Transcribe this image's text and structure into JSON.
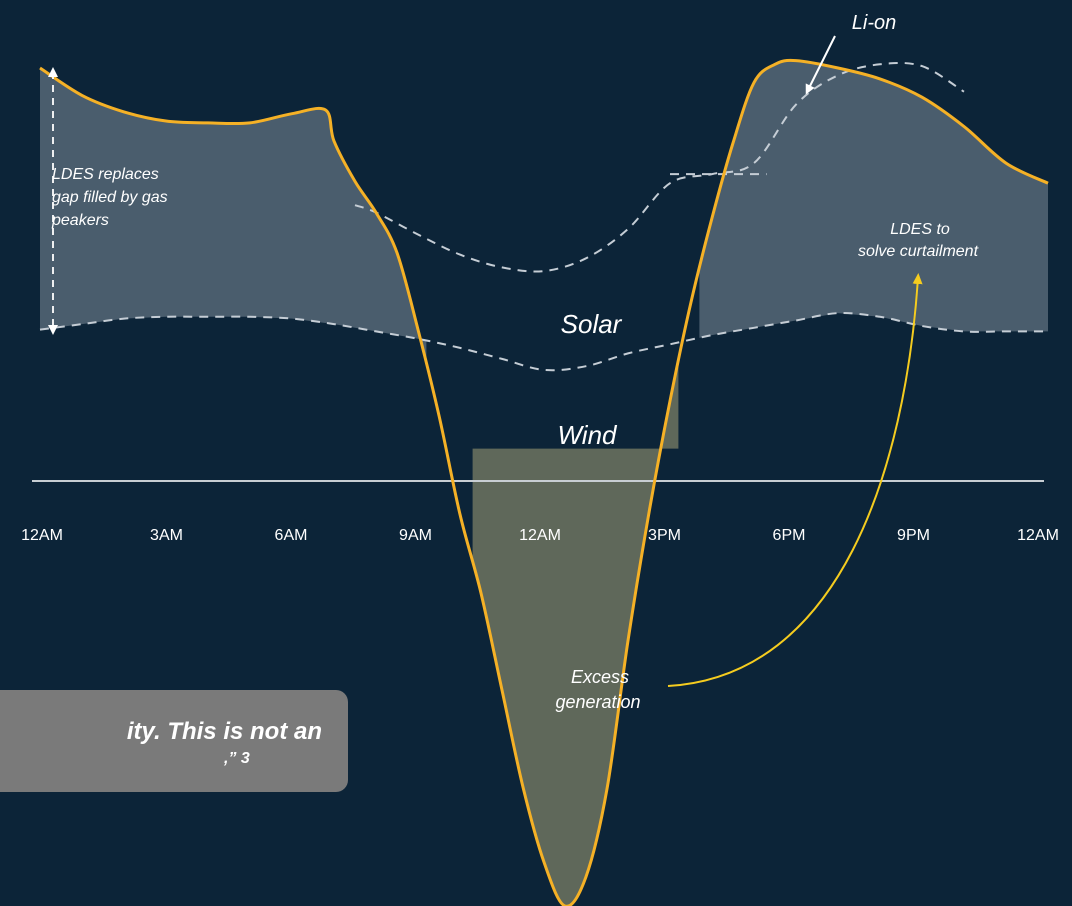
{
  "chart_data": {
    "type": "area",
    "x": [
      "12AM",
      "3AM",
      "6AM",
      "9AM",
      "12AM",
      "3PM",
      "6PM",
      "9PM",
      "12AM"
    ],
    "tick_labels": [
      "12AM",
      "3AM",
      "6AM",
      "9AM",
      "12AM",
      "3PM",
      "6PM",
      "9PM",
      "12AM"
    ],
    "xlim": [
      0,
      24
    ],
    "ylim": [
      -25,
      22
    ],
    "grid": false,
    "series": [
      {
        "name": "",
        "style": "solid",
        "color": "#f5b126",
        "points": [
          [
            0,
            20.8
          ],
          [
            1,
            19.3
          ],
          [
            2,
            18.4
          ],
          [
            3,
            17.9
          ],
          [
            4,
            17.8
          ],
          [
            5,
            17.8
          ],
          [
            6,
            18.3
          ],
          [
            6.8,
            18.5
          ],
          [
            7,
            16.8
          ],
          [
            7.5,
            14.6
          ],
          [
            8,
            12.9
          ],
          [
            8.5,
            10.7
          ],
          [
            9,
            6.5
          ],
          [
            9.5,
            1.8
          ],
          [
            10,
            -3.6
          ],
          [
            10.5,
            -7.9
          ],
          [
            11,
            -13.2
          ],
          [
            11.5,
            -18.5
          ],
          [
            12,
            -22.6
          ],
          [
            12.5,
            -25
          ],
          [
            13,
            -23.4
          ],
          [
            13.5,
            -18.6
          ],
          [
            14,
            -10.5
          ],
          [
            14.5,
            -3.5
          ],
          [
            15,
            2.6
          ],
          [
            15.5,
            8.0
          ],
          [
            16,
            12.6
          ],
          [
            16.5,
            16.7
          ],
          [
            17,
            20.0
          ],
          [
            17.5,
            21.0
          ],
          [
            18,
            21.2
          ],
          [
            19,
            20.8
          ],
          [
            20,
            20.2
          ],
          [
            21,
            19.2
          ],
          [
            22,
            17.6
          ],
          [
            23,
            15.6
          ],
          [
            24,
            14.5
          ]
        ]
      },
      {
        "name": "",
        "style": "dashed",
        "color": "#c5cdd5",
        "points": [
          [
            7.5,
            13.3
          ],
          [
            8,
            12.9
          ],
          [
            9,
            11.7
          ],
          [
            10,
            10.6
          ],
          [
            11,
            9.9
          ],
          [
            12,
            9.7
          ],
          [
            13,
            10.4
          ],
          [
            14,
            12.0
          ],
          [
            15,
            14.5
          ],
          [
            16,
            15.0
          ],
          [
            17,
            15.6
          ],
          [
            18,
            18.8
          ],
          [
            19,
            20.4
          ],
          [
            20,
            21.0
          ],
          [
            21,
            20.9
          ],
          [
            22,
            19.5
          ]
        ]
      },
      {
        "name": "",
        "style": "dashed",
        "color": "#c5cdd5",
        "points": [
          [
            15,
            15.0
          ],
          [
            17.3,
            15.0
          ]
        ]
      },
      {
        "name": "",
        "style": "dashed",
        "color": "#c5cdd5",
        "points": [
          [
            0,
            6.5
          ],
          [
            1,
            6.8
          ],
          [
            2,
            7.1
          ],
          [
            3,
            7.2
          ],
          [
            4,
            7.2
          ],
          [
            5,
            7.2
          ],
          [
            6,
            7.1
          ],
          [
            7,
            6.8
          ],
          [
            8,
            6.4
          ],
          [
            9,
            6.0
          ],
          [
            10,
            5.5
          ],
          [
            11,
            4.9
          ],
          [
            12,
            4.3
          ],
          [
            13,
            4.5
          ],
          [
            14,
            5.2
          ],
          [
            15,
            5.7
          ],
          [
            16,
            6.2
          ],
          [
            17,
            6.6
          ],
          [
            18,
            7.0
          ],
          [
            19,
            7.4
          ],
          [
            20,
            7.2
          ],
          [
            21,
            6.7
          ],
          [
            22,
            6.4
          ],
          [
            23,
            6.4
          ],
          [
            24,
            6.4
          ]
        ]
      }
    ],
    "areas": [
      {
        "name": "",
        "color": "#4a5d6d",
        "between": "upper-curve and baseline",
        "ranges": [
          [
            0,
            9.2
          ],
          [
            15.7,
            24
          ]
        ]
      },
      {
        "name": "",
        "color": "#5f685a",
        "between": "upper-curve and zero",
        "ranges": [
          [
            10.3,
            15.2
          ]
        ]
      }
    ],
    "labels": {
      "solar": "Solar",
      "wind": "Wind",
      "li_on": "Li-on",
      "ldes_gap": [
        "LDES replaces",
        "gap filled by gas",
        "peakers"
      ],
      "ldes_curtail": [
        "LDES to",
        "solve curtailment"
      ],
      "excess": [
        "Excess",
        "generation"
      ]
    }
  },
  "quote": {
    "line1": "ity. This is not an",
    "line2": ",” 3"
  },
  "colors": {
    "background": "#0c2438",
    "curve": "#f5b126",
    "arrow_yellow": "#f5cc1f",
    "dashed": "#c5cdd5",
    "upper_fill": "#4a5d6d",
    "lower_fill": "#5f685a",
    "axis_line": "#c8ced3",
    "quote_box": "#7a7a7a"
  }
}
